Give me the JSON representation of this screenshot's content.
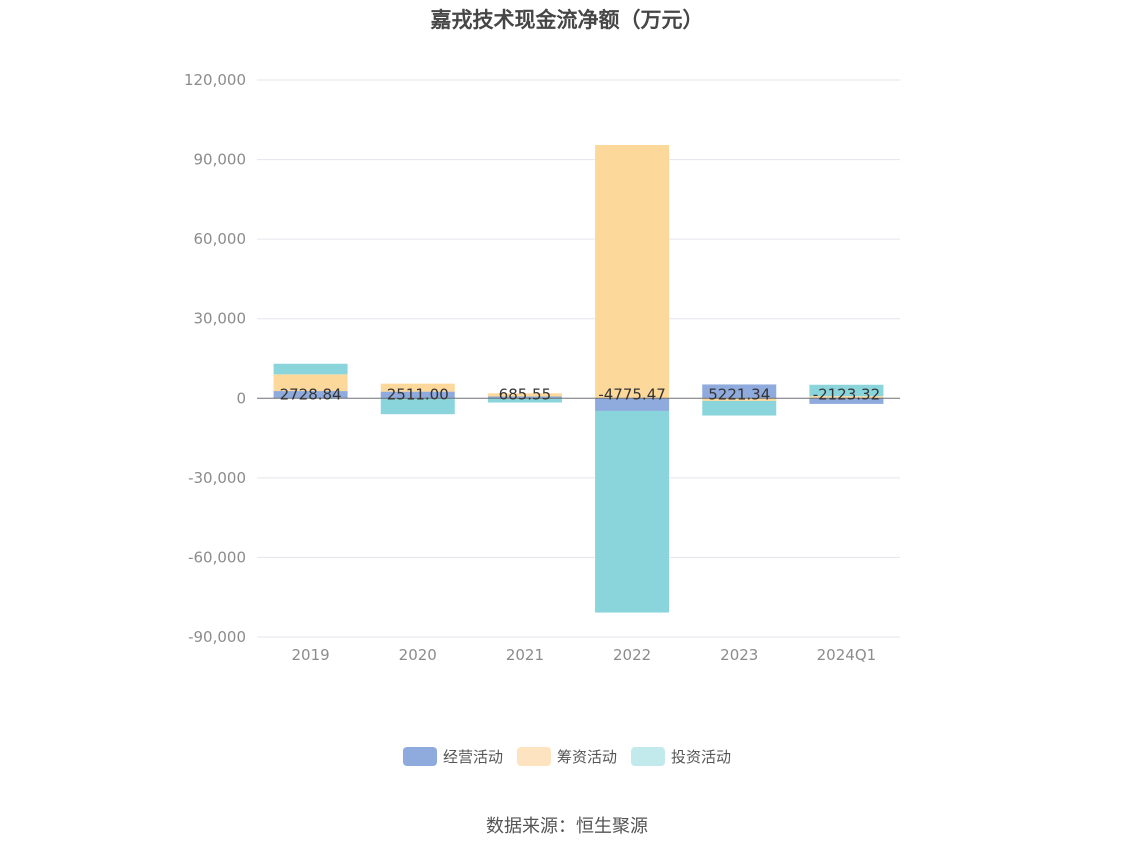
{
  "chart_data": {
    "type": "bar",
    "stacked": true,
    "title": "嘉戎技术现金流净额（万元）",
    "source": "数据来源：恒生聚源",
    "categories": [
      "2019",
      "2020",
      "2021",
      "2022",
      "2023",
      "2024Q1"
    ],
    "ylim": [
      -90000,
      120000
    ],
    "yticks": [
      120000,
      90000,
      60000,
      30000,
      0,
      -30000,
      -60000,
      -90000
    ],
    "ytick_labels": [
      "120,000",
      "90,000",
      "60,000",
      "30,000",
      "0",
      "-30,000",
      "-60,000",
      "-90,000"
    ],
    "grid": true,
    "legend_position": "bottom",
    "series": [
      {
        "name": "经营活动",
        "color": "#8faadc",
        "values": [
          2728.84,
          2511.0,
          685.55,
          -4775.47,
          5221.34,
          -2123.32
        ]
      },
      {
        "name": "筹资活动",
        "color": "#fdd89b",
        "values": [
          6300,
          3000,
          1200,
          95500,
          -1000,
          800
        ]
      },
      {
        "name": "投资活动",
        "color": "#89d5db",
        "values": [
          4000,
          -6000,
          -1600,
          -76000,
          -5500,
          4300
        ]
      }
    ],
    "data_labels": [
      "2728.84",
      "2511.00",
      "685.55",
      "-4775.47",
      "5221.34",
      "-2123.32"
    ]
  }
}
